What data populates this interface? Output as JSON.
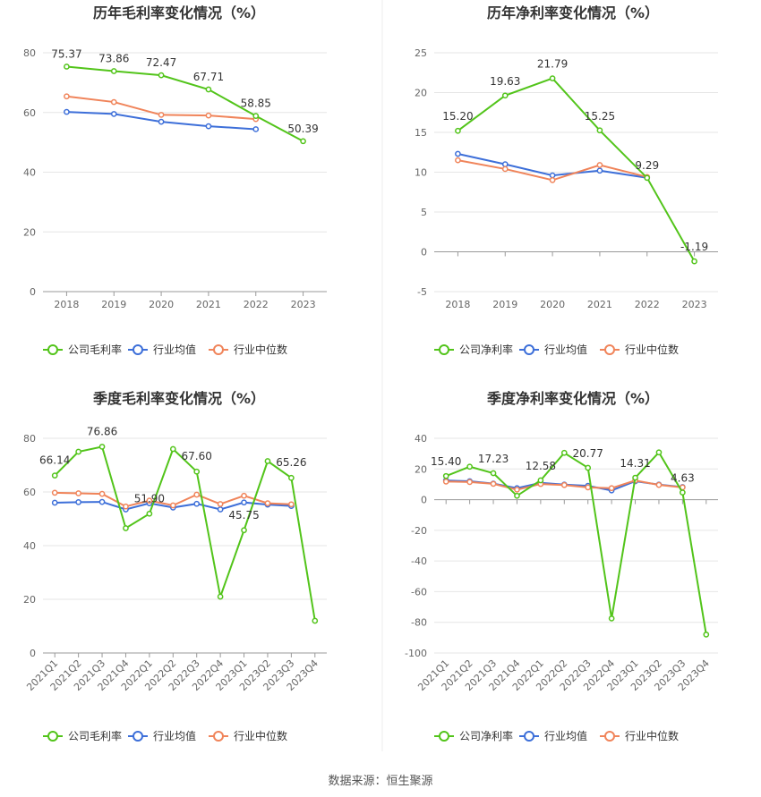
{
  "source_label": "数据来源：恒生聚源",
  "colors": {
    "company": "#52c41a",
    "industry_avg": "#3d6fd9",
    "industry_median": "#f0845a"
  },
  "chart_data": [
    {
      "type": "line",
      "title": "历年毛利率变化情况（%）",
      "categories": [
        "2018",
        "2019",
        "2020",
        "2021",
        "2022",
        "2023"
      ],
      "ylim": [
        0,
        80
      ],
      "yticks": [
        0,
        20,
        40,
        60,
        80
      ],
      "grid": true,
      "legend_position": "bottom",
      "series": [
        {
          "name": "公司毛利率",
          "key": "company",
          "values": [
            75.37,
            73.86,
            72.47,
            67.71,
            58.85,
            50.39
          ]
        },
        {
          "name": "行业均值",
          "key": "industry_avg",
          "values": [
            60.2,
            59.5,
            56.9,
            55.4,
            54.4,
            null
          ]
        },
        {
          "name": "行业中位数",
          "key": "industry_median",
          "values": [
            65.4,
            63.5,
            59.2,
            59.0,
            57.8,
            null
          ]
        }
      ],
      "data_labels": [
        "75.37",
        "73.86",
        "72.47",
        "67.71",
        "58.85",
        "50.39"
      ]
    },
    {
      "type": "line",
      "title": "历年净利率变化情况（%）",
      "categories": [
        "2018",
        "2019",
        "2020",
        "2021",
        "2022",
        "2023"
      ],
      "ylim": [
        -5,
        25
      ],
      "yticks": [
        -5,
        0,
        5,
        10,
        15,
        20,
        25
      ],
      "grid": true,
      "legend_position": "bottom",
      "series": [
        {
          "name": "公司净利率",
          "key": "company",
          "values": [
            15.2,
            19.63,
            21.79,
            15.25,
            9.29,
            -1.19
          ]
        },
        {
          "name": "行业均值",
          "key": "industry_avg",
          "values": [
            12.3,
            11.0,
            9.6,
            10.2,
            9.3,
            null
          ]
        },
        {
          "name": "行业中位数",
          "key": "industry_median",
          "values": [
            11.5,
            10.4,
            9.0,
            10.9,
            9.4,
            null
          ]
        }
      ],
      "data_labels": [
        "15.20",
        "19.63",
        "21.79",
        "15.25",
        "9.29",
        "-1.19"
      ]
    },
    {
      "type": "line",
      "title": "季度毛利率变化情况（%）",
      "categories": [
        "2021Q1",
        "2021Q2",
        "2021Q3",
        "2021Q4",
        "2022Q1",
        "2022Q2",
        "2022Q3",
        "2022Q4",
        "2023Q1",
        "2023Q2",
        "2023Q3",
        "2023Q4"
      ],
      "ylim": [
        0,
        80
      ],
      "yticks": [
        0,
        20,
        40,
        60,
        80
      ],
      "grid": true,
      "legend_position": "bottom",
      "series": [
        {
          "name": "公司毛利率",
          "key": "company",
          "values": [
            66.14,
            75.0,
            76.86,
            46.5,
            51.9,
            76.0,
            67.6,
            21.0,
            45.75,
            71.5,
            65.26,
            12.0
          ]
        },
        {
          "name": "行业均值",
          "key": "industry_avg",
          "values": [
            56.0,
            56.2,
            56.3,
            53.5,
            55.8,
            54.2,
            55.6,
            53.5,
            56.1,
            55.3,
            54.8,
            null
          ]
        },
        {
          "name": "行业中位数",
          "key": "industry_median",
          "values": [
            59.7,
            59.5,
            59.3,
            54.6,
            56.8,
            55.0,
            59.0,
            55.5,
            58.6,
            55.8,
            55.4,
            null
          ]
        }
      ],
      "data_labels": [
        "66.14",
        "",
        "76.86",
        "",
        "51.90",
        "",
        "67.60",
        "",
        "45.75",
        "",
        "65.26",
        ""
      ]
    },
    {
      "type": "line",
      "title": "季度净利率变化情况（%）",
      "categories": [
        "2021Q1",
        "2021Q2",
        "2021Q3",
        "2021Q4",
        "2022Q1",
        "2022Q2",
        "2022Q3",
        "2022Q4",
        "2023Q1",
        "2023Q2",
        "2023Q3",
        "2023Q4"
      ],
      "ylim": [
        -100,
        40
      ],
      "yticks": [
        -100,
        -80,
        -60,
        -40,
        -20,
        0,
        20,
        40
      ],
      "grid": true,
      "legend_position": "bottom",
      "series": [
        {
          "name": "公司净利率",
          "key": "company",
          "values": [
            15.4,
            21.5,
            17.23,
            2.5,
            12.58,
            30.5,
            20.77,
            -77.5,
            14.31,
            30.8,
            4.63,
            -88.0
          ]
        },
        {
          "name": "行业均值",
          "key": "industry_avg",
          "values": [
            12.5,
            12.0,
            10.5,
            7.5,
            11.0,
            9.8,
            9.0,
            6.0,
            12.0,
            9.8,
            8.2,
            null
          ]
        },
        {
          "name": "行业中位数",
          "key": "industry_median",
          "values": [
            11.8,
            11.5,
            10.3,
            6.5,
            10.2,
            9.5,
            8.0,
            7.5,
            12.5,
            9.6,
            8.0,
            null
          ]
        }
      ],
      "data_labels": [
        "15.40",
        "",
        "17.23",
        "",
        "12.58",
        "",
        "20.77",
        "",
        "14.31",
        "",
        "4.63",
        ""
      ]
    }
  ]
}
